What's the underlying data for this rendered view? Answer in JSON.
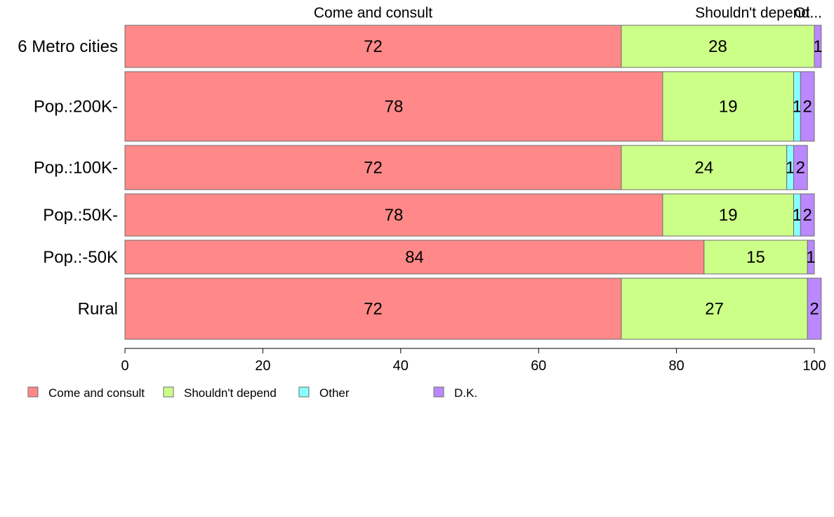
{
  "chart_data": {
    "type": "bar",
    "orientation": "horizontal",
    "stacked": true,
    "categories": [
      "6 Metro cities",
      "Pop.:200K-",
      "Pop.:100K-",
      "Pop.:50K-",
      "Pop.:-50K",
      "Rural"
    ],
    "series": [
      {
        "name": "Come and consult",
        "color": "#ff8888",
        "values": [
          72,
          78,
          72,
          78,
          84,
          72
        ],
        "display": [
          "72",
          "78",
          "72",
          "78",
          "84",
          "72"
        ]
      },
      {
        "name": "Shouldn't depend",
        "color": "#ccff88",
        "values": [
          28,
          19,
          24,
          19,
          15,
          27
        ],
        "display": [
          "28",
          "19",
          "24",
          "19",
          "15",
          "27"
        ]
      },
      {
        "name": "Other",
        "color": "#88ffff",
        "values": [
          0,
          1,
          1,
          1,
          0,
          0
        ],
        "display": [
          "",
          "1",
          "1",
          "1",
          "",
          ""
        ]
      },
      {
        "name": "D.K.",
        "color": "#bb88ff",
        "values": [
          1,
          2,
          2,
          2,
          1,
          2
        ],
        "display": [
          "1",
          "2",
          "2",
          "2",
          "1",
          "2"
        ]
      }
    ],
    "top_labels": [
      "Come and consult",
      "Shouldn't depend",
      "Ot..."
    ],
    "xlim": [
      0,
      100
    ],
    "x_ticks": [
      0,
      20,
      40,
      60,
      80,
      100
    ],
    "x_tick_labels": [
      "0",
      "20",
      "40",
      "60",
      "80",
      "100"
    ],
    "legend_position": "bottom-left",
    "grid": false
  }
}
